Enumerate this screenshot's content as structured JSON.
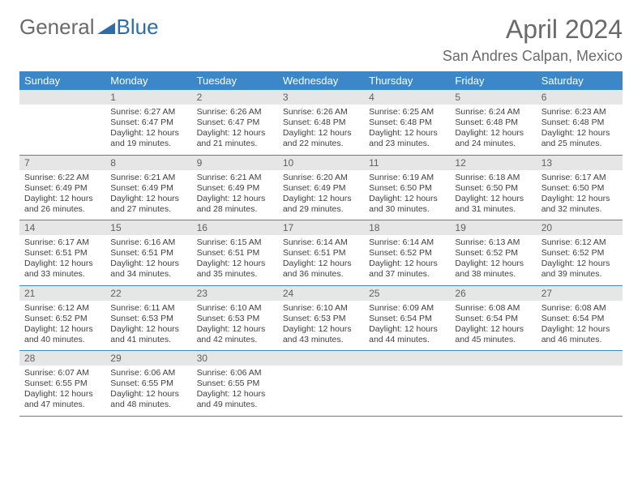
{
  "logo": {
    "part1": "General",
    "part2": "Blue",
    "shape_color": "#2d6ea8"
  },
  "title": "April 2024",
  "location": "San Andres Calpan, Mexico",
  "colors": {
    "header_bg": "#3b87c8",
    "header_text": "#ffffff",
    "daynum_bg": "#e6e6e6",
    "daynum_text": "#606060",
    "row_divider": "#3b87c8",
    "body_text": "#404040",
    "page_bg": "#ffffff"
  },
  "weekdays": [
    "Sunday",
    "Monday",
    "Tuesday",
    "Wednesday",
    "Thursday",
    "Friday",
    "Saturday"
  ],
  "weeks": [
    [
      null,
      {
        "n": "1",
        "sr": "6:27 AM",
        "ss": "6:47 PM",
        "dl": "Daylight: 12 hours and 19 minutes."
      },
      {
        "n": "2",
        "sr": "6:26 AM",
        "ss": "6:47 PM",
        "dl": "Daylight: 12 hours and 21 minutes."
      },
      {
        "n": "3",
        "sr": "6:26 AM",
        "ss": "6:48 PM",
        "dl": "Daylight: 12 hours and 22 minutes."
      },
      {
        "n": "4",
        "sr": "6:25 AM",
        "ss": "6:48 PM",
        "dl": "Daylight: 12 hours and 23 minutes."
      },
      {
        "n": "5",
        "sr": "6:24 AM",
        "ss": "6:48 PM",
        "dl": "Daylight: 12 hours and 24 minutes."
      },
      {
        "n": "6",
        "sr": "6:23 AM",
        "ss": "6:48 PM",
        "dl": "Daylight: 12 hours and 25 minutes."
      }
    ],
    [
      {
        "n": "7",
        "sr": "6:22 AM",
        "ss": "6:49 PM",
        "dl": "Daylight: 12 hours and 26 minutes."
      },
      {
        "n": "8",
        "sr": "6:21 AM",
        "ss": "6:49 PM",
        "dl": "Daylight: 12 hours and 27 minutes."
      },
      {
        "n": "9",
        "sr": "6:21 AM",
        "ss": "6:49 PM",
        "dl": "Daylight: 12 hours and 28 minutes."
      },
      {
        "n": "10",
        "sr": "6:20 AM",
        "ss": "6:49 PM",
        "dl": "Daylight: 12 hours and 29 minutes."
      },
      {
        "n": "11",
        "sr": "6:19 AM",
        "ss": "6:50 PM",
        "dl": "Daylight: 12 hours and 30 minutes."
      },
      {
        "n": "12",
        "sr": "6:18 AM",
        "ss": "6:50 PM",
        "dl": "Daylight: 12 hours and 31 minutes."
      },
      {
        "n": "13",
        "sr": "6:17 AM",
        "ss": "6:50 PM",
        "dl": "Daylight: 12 hours and 32 minutes."
      }
    ],
    [
      {
        "n": "14",
        "sr": "6:17 AM",
        "ss": "6:51 PM",
        "dl": "Daylight: 12 hours and 33 minutes."
      },
      {
        "n": "15",
        "sr": "6:16 AM",
        "ss": "6:51 PM",
        "dl": "Daylight: 12 hours and 34 minutes."
      },
      {
        "n": "16",
        "sr": "6:15 AM",
        "ss": "6:51 PM",
        "dl": "Daylight: 12 hours and 35 minutes."
      },
      {
        "n": "17",
        "sr": "6:14 AM",
        "ss": "6:51 PM",
        "dl": "Daylight: 12 hours and 36 minutes."
      },
      {
        "n": "18",
        "sr": "6:14 AM",
        "ss": "6:52 PM",
        "dl": "Daylight: 12 hours and 37 minutes."
      },
      {
        "n": "19",
        "sr": "6:13 AM",
        "ss": "6:52 PM",
        "dl": "Daylight: 12 hours and 38 minutes."
      },
      {
        "n": "20",
        "sr": "6:12 AM",
        "ss": "6:52 PM",
        "dl": "Daylight: 12 hours and 39 minutes."
      }
    ],
    [
      {
        "n": "21",
        "sr": "6:12 AM",
        "ss": "6:52 PM",
        "dl": "Daylight: 12 hours and 40 minutes."
      },
      {
        "n": "22",
        "sr": "6:11 AM",
        "ss": "6:53 PM",
        "dl": "Daylight: 12 hours and 41 minutes."
      },
      {
        "n": "23",
        "sr": "6:10 AM",
        "ss": "6:53 PM",
        "dl": "Daylight: 12 hours and 42 minutes."
      },
      {
        "n": "24",
        "sr": "6:10 AM",
        "ss": "6:53 PM",
        "dl": "Daylight: 12 hours and 43 minutes."
      },
      {
        "n": "25",
        "sr": "6:09 AM",
        "ss": "6:54 PM",
        "dl": "Daylight: 12 hours and 44 minutes."
      },
      {
        "n": "26",
        "sr": "6:08 AM",
        "ss": "6:54 PM",
        "dl": "Daylight: 12 hours and 45 minutes."
      },
      {
        "n": "27",
        "sr": "6:08 AM",
        "ss": "6:54 PM",
        "dl": "Daylight: 12 hours and 46 minutes."
      }
    ],
    [
      {
        "n": "28",
        "sr": "6:07 AM",
        "ss": "6:55 PM",
        "dl": "Daylight: 12 hours and 47 minutes."
      },
      {
        "n": "29",
        "sr": "6:06 AM",
        "ss": "6:55 PM",
        "dl": "Daylight: 12 hours and 48 minutes."
      },
      {
        "n": "30",
        "sr": "6:06 AM",
        "ss": "6:55 PM",
        "dl": "Daylight: 12 hours and 49 minutes."
      },
      null,
      null,
      null,
      null
    ]
  ]
}
